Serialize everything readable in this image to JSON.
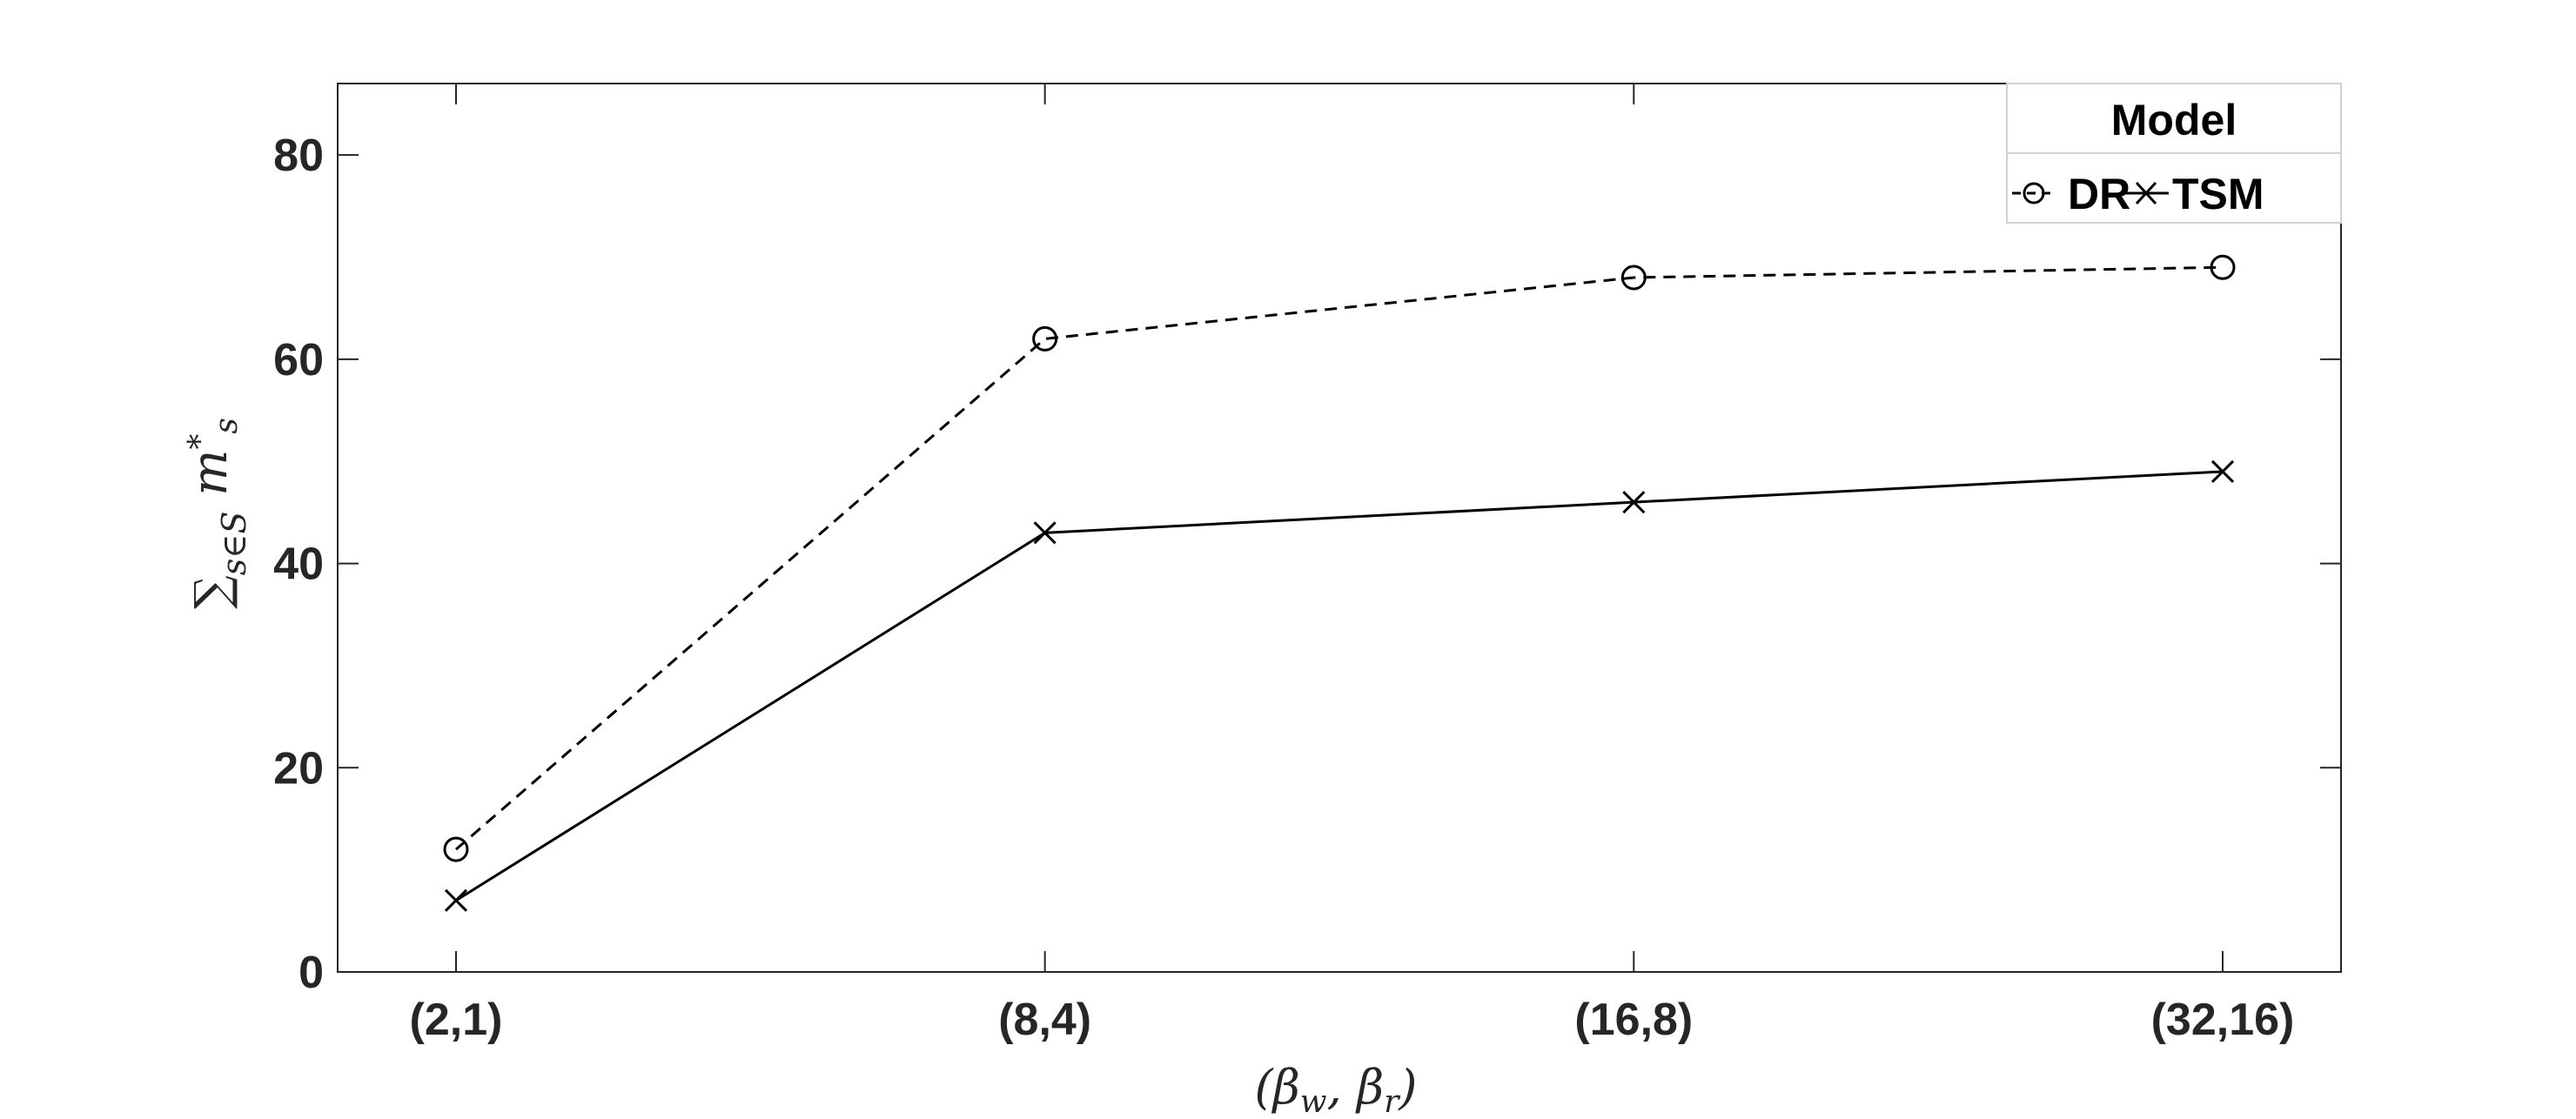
{
  "chart_data": {
    "type": "line",
    "categories": [
      "(2,1)",
      "(8,4)",
      "(16,8)",
      "(32,16)"
    ],
    "series": [
      {
        "name": "DR",
        "values": [
          12,
          62,
          68,
          69
        ],
        "line_style": "dashed",
        "marker": "circle",
        "color": "#000000"
      },
      {
        "name": "TSM",
        "values": [
          7,
          43,
          46,
          49
        ],
        "line_style": "solid",
        "marker": "x",
        "color": "#000000"
      }
    ],
    "xlabel": "(βw, βr)",
    "ylabel": "Σs∈S m*s",
    "ylim": [
      0,
      87
    ],
    "yticks": [
      0,
      20,
      40,
      60,
      80
    ],
    "legend": {
      "title": "Model",
      "placement": "top-right"
    },
    "grid": false
  }
}
